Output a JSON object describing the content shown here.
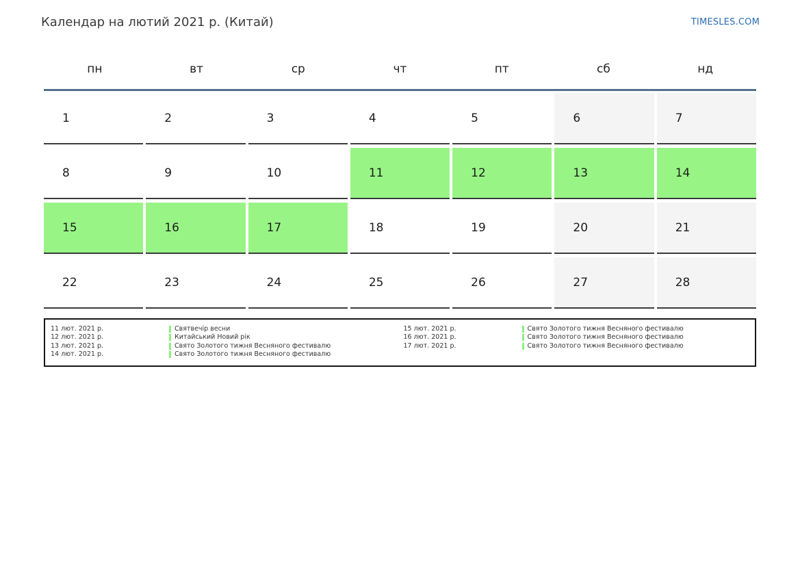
{
  "page": {
    "title": "Календар на лютий 2021 р. (Китай)",
    "brand": "TIMESLES.COM"
  },
  "colors": {
    "holiday_green": "#98f585",
    "weekend_gray": "#f4f4f4",
    "header_line_blue": "#54708e",
    "brand_blue": "#2a6cb5",
    "legend_bar_green": "#8bf27d",
    "cell_border_dark": "#3b3b3b"
  },
  "calendar": {
    "weekdays": [
      "пн",
      "вт",
      "ср",
      "чт",
      "пт",
      "сб",
      "нд"
    ],
    "weeks": [
      [
        {
          "day": 1,
          "type": "normal"
        },
        {
          "day": 2,
          "type": "normal"
        },
        {
          "day": 3,
          "type": "normal"
        },
        {
          "day": 4,
          "type": "normal"
        },
        {
          "day": 5,
          "type": "normal"
        },
        {
          "day": 6,
          "type": "weekend"
        },
        {
          "day": 7,
          "type": "weekend"
        }
      ],
      [
        {
          "day": 8,
          "type": "normal"
        },
        {
          "day": 9,
          "type": "normal"
        },
        {
          "day": 10,
          "type": "normal"
        },
        {
          "day": 11,
          "type": "holiday"
        },
        {
          "day": 12,
          "type": "holiday"
        },
        {
          "day": 13,
          "type": "holiday"
        },
        {
          "day": 14,
          "type": "holiday"
        }
      ],
      [
        {
          "day": 15,
          "type": "holiday"
        },
        {
          "day": 16,
          "type": "holiday"
        },
        {
          "day": 17,
          "type": "holiday"
        },
        {
          "day": 18,
          "type": "normal"
        },
        {
          "day": 19,
          "type": "normal"
        },
        {
          "day": 20,
          "type": "weekend"
        },
        {
          "day": 21,
          "type": "weekend"
        }
      ],
      [
        {
          "day": 22,
          "type": "normal"
        },
        {
          "day": 23,
          "type": "normal"
        },
        {
          "day": 24,
          "type": "normal"
        },
        {
          "day": 25,
          "type": "normal"
        },
        {
          "day": 26,
          "type": "normal"
        },
        {
          "day": 27,
          "type": "weekend"
        },
        {
          "day": 28,
          "type": "weekend"
        }
      ]
    ]
  },
  "legend": {
    "columns": [
      {
        "items": [
          {
            "date": "11 лют. 2021 р.",
            "name": "Святвечір весни"
          },
          {
            "date": "12 лют. 2021 р.",
            "name": "Китайський Новий рік"
          },
          {
            "date": "13 лют. 2021 р.",
            "name": "Свято Золотого тижня Весняного фестивалю"
          },
          {
            "date": "14 лют. 2021 р.",
            "name": "Свято Золотого тижня Весняного фестивалю"
          }
        ]
      },
      {
        "items": [
          {
            "date": "15 лют. 2021 р.",
            "name": "Свято Золотого тижня Весняного фестивалю"
          },
          {
            "date": "16 лют. 2021 р.",
            "name": "Свято Золотого тижня Весняного фестивалю"
          },
          {
            "date": "17 лют. 2021 р.",
            "name": "Свято Золотого тижня Весняного фестивалю"
          }
        ]
      }
    ]
  }
}
